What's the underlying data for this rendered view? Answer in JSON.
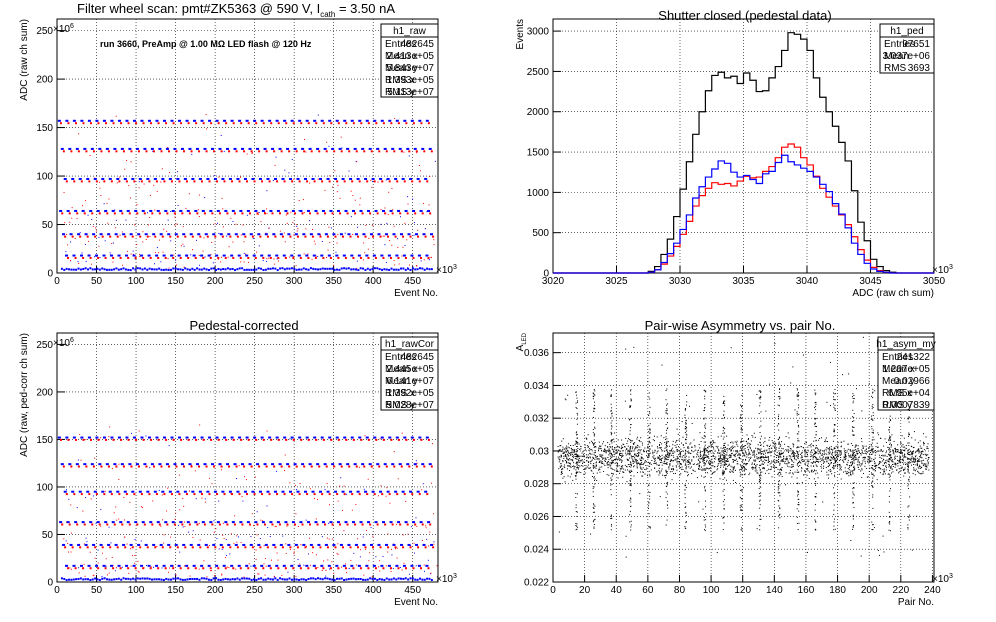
{
  "chart_data": [
    {
      "type": "scatter",
      "title": "Filter wheel scan: pmt#ZK5363 @   590 V, I",
      "title_sub": "cath",
      "title_tail": " = 3.50 nA",
      "annotation": "run 3660, PreAmp @ 1.00 MΩ LED flash @  120 Hz",
      "xlabel": "Event No.",
      "ylabel": "ADC (raw ch sum)",
      "xlim": [
        0,
        482
      ],
      "ylim": [
        0,
        262
      ],
      "x_exponent": "×10",
      "x_exp_power": "3",
      "y_exponent": "×10",
      "y_exp_power": "6",
      "xticks": [
        0,
        50,
        100,
        150,
        200,
        250,
        300,
        350,
        400,
        450
      ],
      "yticks": [
        0,
        50,
        100,
        150,
        200,
        250
      ],
      "grid": true,
      "levels": [
        157,
        128,
        97,
        64,
        40,
        18,
        4
      ],
      "series": [
        {
          "color": "#0000ff"
        },
        {
          "color": "#ff0000"
        }
      ],
      "stats": {
        "name": "h1_raw",
        "rows": [
          [
            "Entries",
            "482645"
          ],
          [
            "Mean x",
            "2.413e+05"
          ],
          [
            "Mean y",
            "5.843e+07"
          ],
          [
            "RMS x",
            "1.393e+05"
          ],
          [
            "RMS y",
            "5.113e+07"
          ]
        ]
      }
    },
    {
      "type": "line",
      "title": "Shutter closed (pedestal data)",
      "xlabel": "ADC (raw ch sum)",
      "ylabel": "Events",
      "xlim": [
        3020,
        3050
      ],
      "ylim": [
        0,
        3150
      ],
      "x_exponent": "×10",
      "x_exp_power": "3",
      "xticks": [
        3020,
        3025,
        3030,
        3035,
        3040,
        3045,
        3050
      ],
      "yticks": [
        0,
        500,
        1000,
        1500,
        2000,
        2500,
        3000
      ],
      "grid": true,
      "series": [
        {
          "color": "#000000",
          "x": [
            3027.5,
            3028,
            3028.5,
            3029,
            3029.5,
            3030,
            3030.5,
            3031,
            3031.5,
            3032,
            3032.5,
            3033,
            3033.5,
            3034,
            3034.5,
            3035,
            3035.5,
            3036,
            3036.5,
            3037,
            3037.5,
            3038,
            3038.5,
            3039,
            3039.5,
            3040,
            3040.5,
            3041,
            3041.5,
            3042,
            3042.5,
            3043,
            3043.5,
            3044,
            3044.5,
            3045,
            3045.5,
            3046,
            3046.5,
            3047
          ],
          "values": [
            20,
            80,
            230,
            420,
            700,
            1040,
            1380,
            1720,
            2000,
            2260,
            2450,
            2490,
            2420,
            2440,
            2350,
            2480,
            2390,
            2250,
            2260,
            2420,
            2560,
            2760,
            2980,
            2960,
            2900,
            2760,
            2420,
            2180,
            2000,
            1820,
            1620,
            1390,
            1020,
            630,
            400,
            170,
            80,
            30,
            10,
            0
          ]
        },
        {
          "color": "#ff0000",
          "x": [
            3027.5,
            3028,
            3028.5,
            3029,
            3029.5,
            3030,
            3030.5,
            3031,
            3031.5,
            3032,
            3032.5,
            3033,
            3033.5,
            3034,
            3034.5,
            3035,
            3035.5,
            3036,
            3036.5,
            3037,
            3037.5,
            3038,
            3038.5,
            3039,
            3039.5,
            3040,
            3040.5,
            3041,
            3041.5,
            3042,
            3042.5,
            3043,
            3043.5,
            3044,
            3044.5,
            3045,
            3045.5,
            3046,
            3046.5,
            3047
          ],
          "values": [
            10,
            40,
            110,
            210,
            330,
            480,
            640,
            830,
            960,
            1050,
            1120,
            1100,
            1110,
            1080,
            1140,
            1200,
            1180,
            1190,
            1260,
            1320,
            1430,
            1560,
            1600,
            1560,
            1430,
            1340,
            1200,
            1050,
            940,
            830,
            720,
            600,
            450,
            290,
            160,
            70,
            30,
            10,
            0,
            0
          ]
        },
        {
          "color": "#0000ff",
          "x": [
            3027.5,
            3028,
            3028.5,
            3029,
            3029.5,
            3030,
            3030.5,
            3031,
            3031.5,
            3032,
            3032.5,
            3033,
            3033.5,
            3034,
            3034.5,
            3035,
            3035.5,
            3036,
            3036.5,
            3037,
            3037.5,
            3038,
            3038.5,
            3039,
            3039.5,
            3040,
            3040.5,
            3041,
            3041.5,
            3042,
            3042.5,
            3043,
            3043.5,
            3044,
            3044.5,
            3045,
            3045.5,
            3046,
            3046.5,
            3047
          ],
          "values": [
            10,
            40,
            130,
            240,
            370,
            540,
            720,
            930,
            1070,
            1190,
            1290,
            1390,
            1360,
            1250,
            1190,
            1210,
            1160,
            1110,
            1230,
            1260,
            1370,
            1460,
            1380,
            1340,
            1300,
            1260,
            1190,
            1100,
            1010,
            860,
            730,
            560,
            370,
            230,
            120,
            50,
            20,
            10,
            0,
            0
          ]
        }
      ],
      "stats": {
        "name": "h1_ped",
        "rows": [
          [
            "Entries",
            "97651"
          ],
          [
            "Mean",
            "3.037e+06"
          ],
          [
            "RMS",
            "3693"
          ]
        ]
      }
    },
    {
      "type": "scatter",
      "title": "Pedestal-corrected",
      "xlabel": "Event No.",
      "ylabel": "ADC (raw, ped-corr ch sum)",
      "xlim": [
        0,
        482
      ],
      "ylim": [
        0,
        262
      ],
      "x_exponent": "×10",
      "x_exp_power": "3",
      "y_exponent": "×10",
      "y_exp_power": "6",
      "xticks": [
        0,
        50,
        100,
        150,
        200,
        250,
        300,
        350,
        400,
        450
      ],
      "yticks": [
        0,
        50,
        100,
        150,
        200,
        250
      ],
      "grid": true,
      "levels": [
        152,
        124,
        95,
        63,
        39,
        17,
        3
      ],
      "series": [
        {
          "color": "#0000ff"
        },
        {
          "color": "#ff0000"
        }
      ],
      "stats": {
        "name": "h1_rawCor",
        "rows": [
          [
            "Entries",
            "482645"
          ],
          [
            "Mean x",
            "2.445e+05"
          ],
          [
            "Mean y",
            "6.141e+07"
          ],
          [
            "RMS x",
            "1.392e+05"
          ],
          [
            "RMS y",
            "5.028e+07"
          ]
        ]
      }
    },
    {
      "type": "scatter",
      "title": "Pair-wise Asymmetry vs. pair No.",
      "xlabel": "Pair No.",
      "ylabel": "A",
      "ylabel_sub": "LED",
      "xlim": [
        0,
        241
      ],
      "ylim": [
        0.022,
        0.0372
      ],
      "x_exponent": "×10",
      "x_exp_power": "3",
      "xticks": [
        0,
        20,
        40,
        60,
        80,
        100,
        120,
        140,
        160,
        180,
        200,
        220,
        240
      ],
      "yticks": [
        0.022,
        0.024,
        0.026,
        0.028,
        0.03,
        0.032,
        0.034,
        0.036
      ],
      "grid": true,
      "band_center": 0.0296,
      "spike_x": [
        15,
        26,
        37,
        49,
        61,
        72,
        84,
        96,
        108,
        119,
        131,
        143,
        155,
        166,
        178,
        190,
        202,
        213,
        225
      ],
      "series": [
        {
          "color": "#000000"
        }
      ],
      "stats": {
        "name": "h1_asym_my",
        "rows": [
          [
            "Entries",
            "241322"
          ],
          [
            "Mean x",
            "1.207e+05"
          ],
          [
            "Mean y",
            "0.02966"
          ],
          [
            "RMS x",
            "6.95e+04"
          ],
          [
            "RMS y",
            "0.0007839"
          ]
        ]
      }
    }
  ]
}
